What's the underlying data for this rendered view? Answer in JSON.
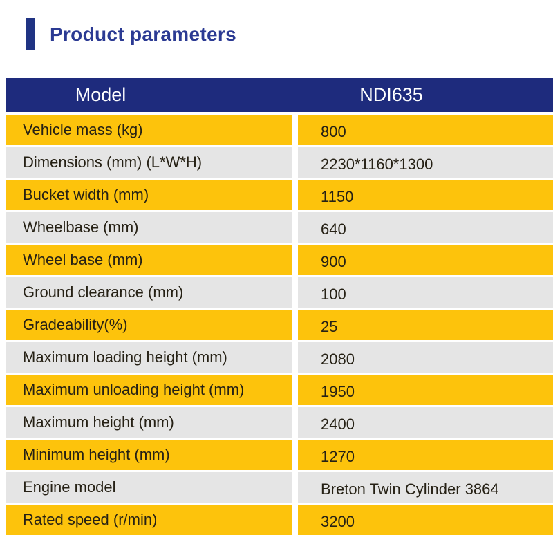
{
  "header": {
    "title": "Product parameters"
  },
  "table": {
    "header": {
      "model": "Model",
      "value": "NDI635"
    },
    "rows": [
      {
        "label": "Vehicle mass (kg)",
        "value": "800"
      },
      {
        "label": "Dimensions (mm) (L*W*H)",
        "value": "2230*1160*1300"
      },
      {
        "label": "Bucket width (mm)",
        "value": "1150"
      },
      {
        "label": "Wheelbase (mm)",
        "value": "640"
      },
      {
        "label": "Wheel base (mm)",
        "value": "900"
      },
      {
        "label": "Ground clearance (mm)",
        "value": "100"
      },
      {
        "label": "Gradeability(%)",
        "value": "25"
      },
      {
        "label": "Maximum loading height (mm)",
        "value": "2080"
      },
      {
        "label": "Maximum unloading height (mm)",
        "value": "1950"
      },
      {
        "label": "Maximum height (mm)",
        "value": "2400"
      },
      {
        "label": "Minimum height (mm)",
        "value": "1270"
      },
      {
        "label": "Engine model",
        "value": "Breton Twin Cylinder 3864"
      },
      {
        "label": "Rated speed (r/min)",
        "value": "3200"
      }
    ]
  },
  "colors": {
    "page_bg": "#ffffff",
    "accent_bar": "#203383",
    "title_text": "#2b3a93",
    "header_bg": "#1e2b7d",
    "header_text": "#ffffff",
    "row_yellow": "#fdc30c",
    "row_gray": "#e5e5e5",
    "label_text": "#262115",
    "value_text": "#262115"
  }
}
